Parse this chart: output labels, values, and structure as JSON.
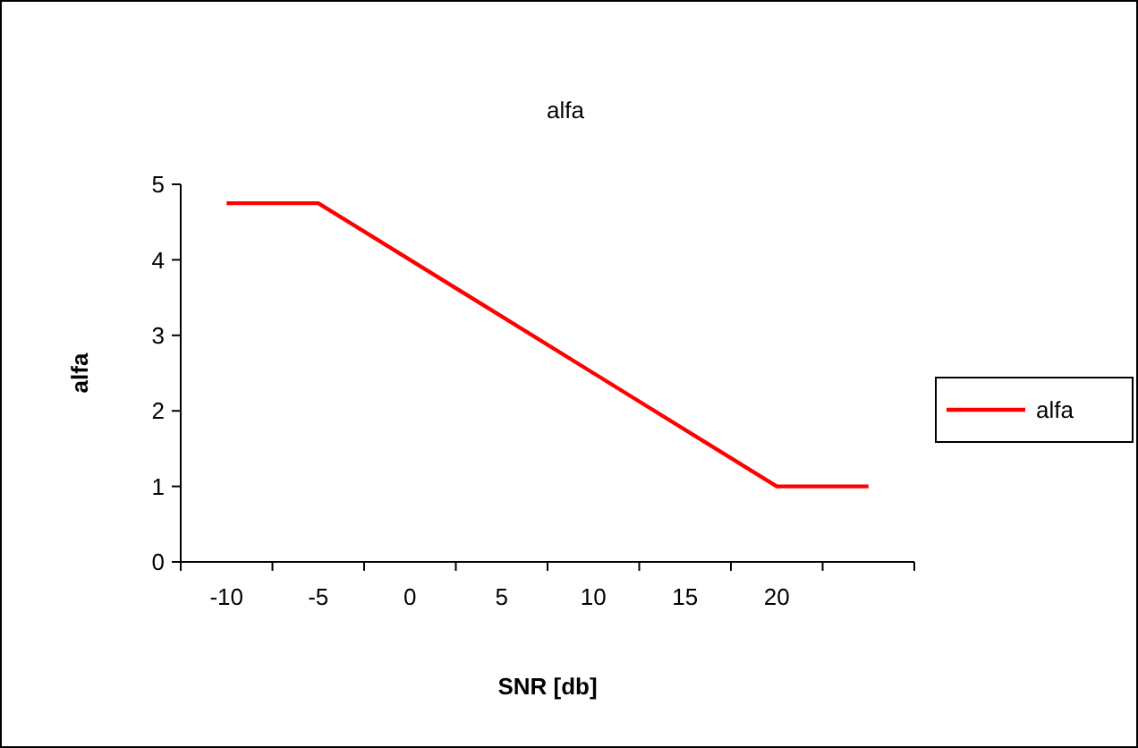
{
  "chart_data": {
    "type": "line",
    "title": "alfa",
    "xlabel": "SNR [db]",
    "ylabel": "alfa",
    "categories": [
      "-10",
      "-5",
      "0",
      "5",
      "10",
      "15",
      "20",
      null
    ],
    "series": [
      {
        "name": "alfa",
        "color": "#ff0000",
        "values": [
          4.75,
          4.75,
          4,
          3.25,
          2.5,
          1.75,
          1,
          1
        ]
      }
    ],
    "ylim": [
      0,
      5
    ],
    "yticks": [
      0,
      1,
      2,
      3,
      4,
      5
    ],
    "legend": "right",
    "marker": "none",
    "line_style": "solid"
  }
}
